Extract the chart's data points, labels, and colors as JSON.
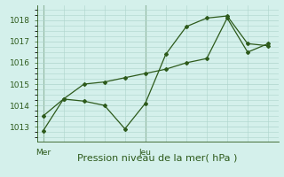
{
  "line1_x": [
    0,
    1,
    2,
    3,
    4,
    5,
    6,
    7,
    8,
    9,
    10,
    11
  ],
  "line1_y": [
    1012.8,
    1014.3,
    1014.2,
    1014.0,
    1012.9,
    1014.1,
    1016.4,
    1017.7,
    1018.1,
    1018.2,
    1016.9,
    1016.8
  ],
  "line2_x": [
    0,
    1,
    2,
    3,
    4,
    5,
    6,
    7,
    8,
    9,
    10,
    11
  ],
  "line2_y": [
    1013.5,
    1014.3,
    1015.0,
    1015.1,
    1015.3,
    1015.5,
    1015.7,
    1016.0,
    1016.2,
    1018.1,
    1016.5,
    1016.9
  ],
  "color": "#2d5a1b",
  "bg_color": "#d4f0eb",
  "grid_color": "#aed4cc",
  "xlabel": "Pression niveau de la mer( hPa )",
  "yticks": [
    1013,
    1014,
    1015,
    1016,
    1017,
    1018
  ],
  "xlim": [
    -0.3,
    11.5
  ],
  "ylim": [
    1012.3,
    1018.7
  ],
  "vline_x": [
    0,
    5
  ],
  "xlabel_fontsize": 8,
  "ytick_fontsize": 6.5,
  "xtick_fontsize": 6.5
}
